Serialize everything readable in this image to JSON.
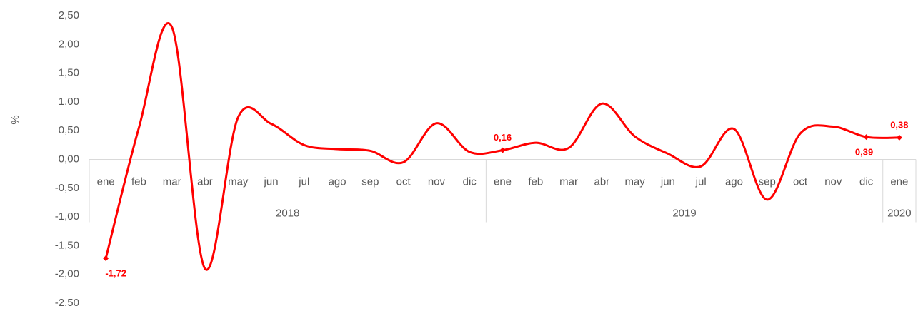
{
  "chart_data": {
    "type": "line",
    "y_label": "%",
    "categories": [
      "ene",
      "feb",
      "mar",
      "abr",
      "may",
      "jun",
      "jul",
      "ago",
      "sep",
      "oct",
      "nov",
      "dic",
      "ene",
      "feb",
      "mar",
      "abr",
      "may",
      "jun",
      "jul",
      "ago",
      "sep",
      "oct",
      "nov",
      "dic",
      "ene"
    ],
    "years": [
      "2018",
      null,
      null,
      null,
      null,
      null,
      null,
      null,
      null,
      null,
      null,
      null,
      "2019",
      null,
      null,
      null,
      null,
      null,
      null,
      null,
      null,
      null,
      null,
      null,
      "2020"
    ],
    "series": [
      {
        "color": "#ff0000",
        "values": [
          -1.72,
          0.55,
          2.3,
          -1.9,
          0.73,
          0.62,
          0.25,
          0.18,
          0.15,
          -0.05,
          0.63,
          0.13,
          0.16,
          0.29,
          0.2,
          0.97,
          0.4,
          0.1,
          -0.12,
          0.53,
          -0.7,
          0.45,
          0.57,
          0.39,
          0.38
        ],
        "value_labels": [
          "-1,72",
          null,
          null,
          null,
          null,
          null,
          null,
          null,
          null,
          null,
          null,
          null,
          "0,16",
          null,
          null,
          null,
          null,
          null,
          null,
          null,
          null,
          null,
          null,
          "0,39",
          "0,38"
        ]
      }
    ],
    "ylim": [
      -2.5,
      2.5
    ],
    "yticks": [
      {
        "value": 2.5,
        "label": "2,50"
      },
      {
        "value": 2.0,
        "label": "2,00"
      },
      {
        "value": 1.5,
        "label": "1,50"
      },
      {
        "value": 1.0,
        "label": "1,00"
      },
      {
        "value": 0.5,
        "label": "0,50"
      },
      {
        "value": 0.0,
        "label": "0,00"
      },
      {
        "value": -0.5,
        "label": "-0,50"
      },
      {
        "value": -1.0,
        "label": "-1,00"
      },
      {
        "value": -1.5,
        "label": "-1,50"
      },
      {
        "value": -2.0,
        "label": "-2,00"
      },
      {
        "value": -2.5,
        "label": "-2,50"
      }
    ],
    "grid": false
  }
}
